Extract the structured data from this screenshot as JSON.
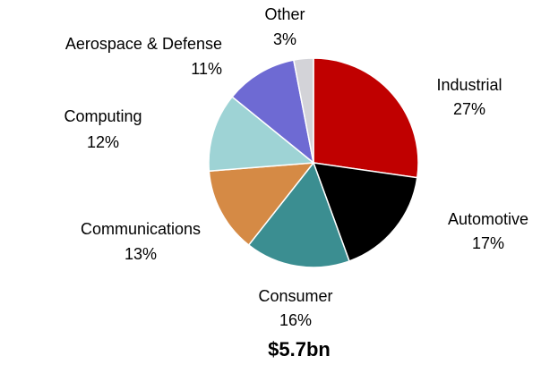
{
  "chart_data": {
    "type": "pie",
    "categories": [
      "Industrial",
      "Automotive",
      "Consumer",
      "Communications",
      "Computing",
      "Aerospace & Defense",
      "Other"
    ],
    "values": [
      27,
      17,
      16,
      13,
      12,
      11,
      3
    ],
    "value_labels": [
      "27%",
      "17%",
      "16%",
      "13%",
      "12%",
      "11%",
      "3%"
    ],
    "colors": [
      "#c00000",
      "#000000",
      "#3b8e91",
      "#d58a45",
      "#9ed3d5",
      "#6e6ad3",
      "#d3d3d8"
    ],
    "annotation": "$5.7bn"
  }
}
